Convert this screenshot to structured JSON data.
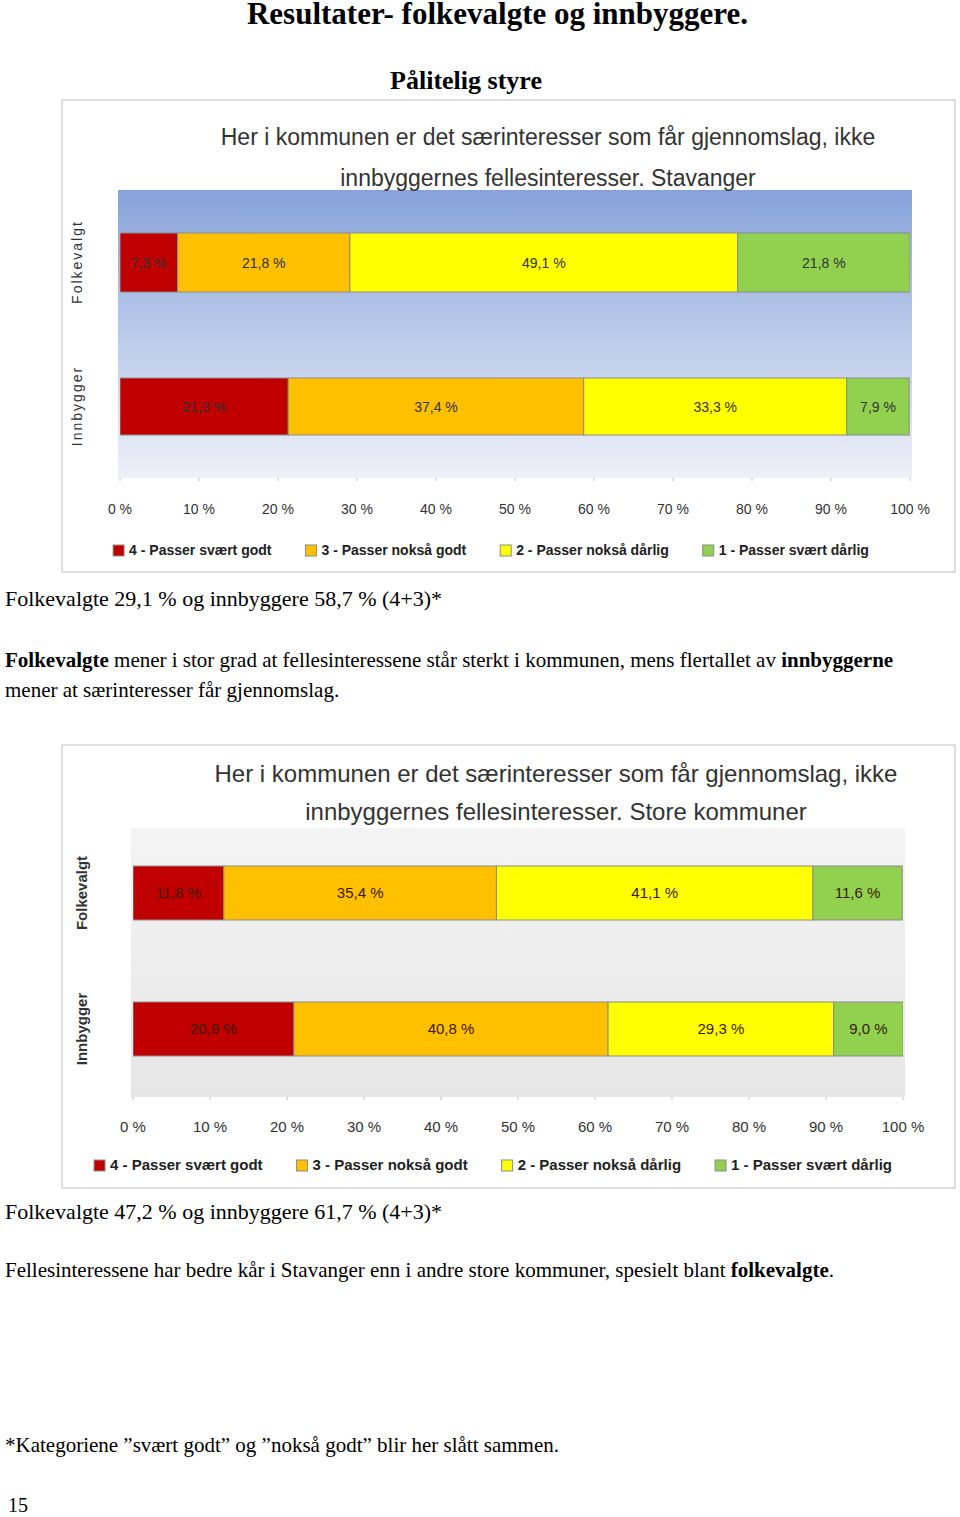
{
  "page": {
    "heading": "Resultater- folkevalgte og innbyggere.",
    "subheading": "Pålitelig styre",
    "sections": [
      {
        "caption": "Folkevalgte 29,1 % og innbyggere 58,7 % (4+3)*",
        "paragraph": [
          {
            "text": "Folkevalgte",
            "bold": true
          },
          {
            "text": " mener i stor grad at fellesinteressene står sterkt i kommunen, mens flertallet av "
          },
          {
            "text": "innbyggerne",
            "bold": true
          },
          {
            "text": " mener at særinteresser får gjennomslag."
          }
        ]
      },
      {
        "caption": "Folkevalgte 47,2 % og innbyggere 61,7 % (4+3)*",
        "paragraph": [
          {
            "text": "Fellesinteressene har bedre kår i Stavanger enn i andre store kommuner, spesielt blant "
          },
          {
            "text": "folkevalgte",
            "bold": true
          },
          {
            "text": "."
          }
        ]
      }
    ],
    "footnote": "*Kategoriene ”svært godt” og ”nokså godt” blir her slått sammen.",
    "page_number": "15"
  },
  "chart_data": [
    {
      "type": "bar",
      "orientation": "horizontal",
      "stacked": true,
      "data_labels": true,
      "legend": "bottom",
      "title": "Her i kommunen er det særinteresser som får gjennomslag, ikke innbyggernes fellesinteresser. Stavanger",
      "categories": [
        "Folkevalgt",
        "Innbygger"
      ],
      "series": [
        {
          "name": "4 - Passer svært godt",
          "color": "#c00000",
          "values": [
            7.3,
            21.3
          ],
          "value_labels": [
            "7,3 %",
            "21,3 %"
          ]
        },
        {
          "name": "3 - Passer nokså godt",
          "color": "#ffc000",
          "values": [
            21.8,
            37.4
          ],
          "value_labels": [
            "21,8 %",
            "37,4 %"
          ]
        },
        {
          "name": "2 - Passer nokså dårlig",
          "color": "#ffff00",
          "values": [
            49.1,
            33.3
          ],
          "value_labels": [
            "49,1 %",
            "33,3 %"
          ]
        },
        {
          "name": "1 - Passer svært dårlig",
          "color": "#92d050",
          "values": [
            21.8,
            7.9
          ],
          "value_labels": [
            "21,8 %",
            "7,9 %"
          ]
        }
      ],
      "xlim": [
        0,
        100
      ],
      "xticks": [
        {
          "value": 0,
          "label": "0 %"
        },
        {
          "value": 10,
          "label": "10 %"
        },
        {
          "value": 20,
          "label": "20 %"
        },
        {
          "value": 30,
          "label": "30 %"
        },
        {
          "value": 40,
          "label": "40 %"
        },
        {
          "value": 50,
          "label": "50 %"
        },
        {
          "value": 60,
          "label": "60 %"
        },
        {
          "value": 70,
          "label": "70 %"
        },
        {
          "value": 80,
          "label": "80 %"
        },
        {
          "value": 90,
          "label": "90 %"
        },
        {
          "value": 100,
          "label": "100 %"
        }
      ]
    },
    {
      "type": "bar",
      "orientation": "horizontal",
      "stacked": true,
      "data_labels": true,
      "legend": "bottom",
      "title": "Her i kommunen er det særinteresser som får gjennomslag, ikke innbyggernes fellesinteresser. Store kommuner",
      "categories": [
        "Folkevalgt",
        "Innbygger"
      ],
      "series": [
        {
          "name": "4 - Passer svært godt",
          "color": "#c00000",
          "values": [
            11.8,
            20.9
          ],
          "value_labels": [
            "11,8 %",
            "20,9 %"
          ]
        },
        {
          "name": "3 - Passer nokså godt",
          "color": "#ffc000",
          "values": [
            35.4,
            40.8
          ],
          "value_labels": [
            "35,4 %",
            "40,8 %"
          ]
        },
        {
          "name": "2 - Passer nokså dårlig",
          "color": "#ffff00",
          "values": [
            41.1,
            29.3
          ],
          "value_labels": [
            "41,1 %",
            "29,3 %"
          ]
        },
        {
          "name": "1 - Passer svært dårlig",
          "color": "#92d050",
          "values": [
            11.6,
            9.0
          ],
          "value_labels": [
            "11,6 %",
            "9,0 %"
          ]
        }
      ],
      "xlim": [
        0,
        100
      ],
      "xticks": [
        {
          "value": 0,
          "label": "0 %"
        },
        {
          "value": 10,
          "label": "10 %"
        },
        {
          "value": 20,
          "label": "20 %"
        },
        {
          "value": 30,
          "label": "30 %"
        },
        {
          "value": 40,
          "label": "40 %"
        },
        {
          "value": 50,
          "label": "50 %"
        },
        {
          "value": 60,
          "label": "60 %"
        },
        {
          "value": 70,
          "label": "70 %"
        },
        {
          "value": 80,
          "label": "80 %"
        },
        {
          "value": 90,
          "label": "90 %"
        },
        {
          "value": 100,
          "label": "100 %"
        }
      ]
    }
  ]
}
